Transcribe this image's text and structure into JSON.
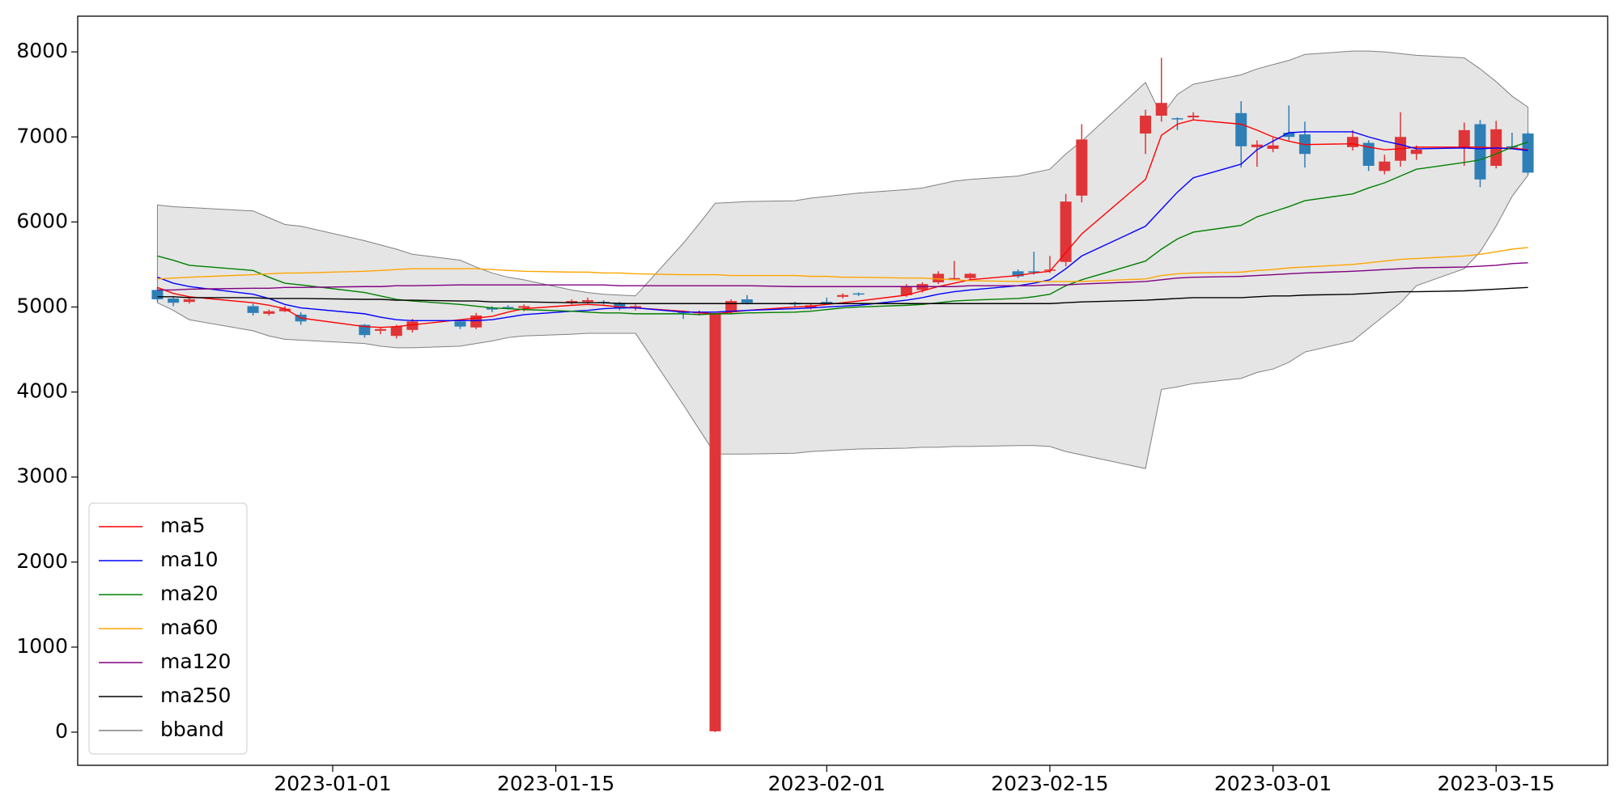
{
  "chart_data": {
    "type": "candlestick",
    "x": [
      "2022-12-21",
      "2022-12-22",
      "2022-12-23",
      "2022-12-27",
      "2022-12-28",
      "2022-12-29",
      "2022-12-30",
      "2023-01-03",
      "2023-01-04",
      "2023-01-05",
      "2023-01-06",
      "2023-01-09",
      "2023-01-10",
      "2023-01-11",
      "2023-01-12",
      "2023-01-13",
      "2023-01-16",
      "2023-01-17",
      "2023-01-18",
      "2023-01-19",
      "2023-01-20",
      "2023-01-23",
      "2023-01-24",
      "2023-01-25",
      "2023-01-26",
      "2023-01-27",
      "2023-01-30",
      "2023-01-31",
      "2023-02-01",
      "2023-02-02",
      "2023-02-03",
      "2023-02-06",
      "2023-02-07",
      "2023-02-08",
      "2023-02-09",
      "2023-02-10",
      "2023-02-13",
      "2023-02-14",
      "2023-02-15",
      "2023-02-16",
      "2023-02-17",
      "2023-02-21",
      "2023-02-22",
      "2023-02-23",
      "2023-02-24",
      "2023-02-27",
      "2023-02-28",
      "2023-03-01",
      "2023-03-02",
      "2023-03-03",
      "2023-03-06",
      "2023-03-07",
      "2023-03-08",
      "2023-03-09",
      "2023-03-10",
      "2023-03-13",
      "2023-03-14",
      "2023-03-15",
      "2023-03-16",
      "2023-03-17"
    ],
    "open": [
      5200,
      5100,
      5060,
      5010,
      4920,
      4950,
      4910,
      4790,
      4720,
      4660,
      4730,
      4830,
      4760,
      4990,
      5000,
      4990,
      5050,
      5060,
      5060,
      5050,
      4990,
      4950,
      4930,
      10,
      4940,
      5090,
      5050,
      4990,
      5060,
      5120,
      5160,
      5140,
      5200,
      5290,
      5330,
      5340,
      5420,
      5420,
      5430,
      5530,
      6310,
      7040,
      7250,
      7220,
      7230,
      7280,
      6880,
      6860,
      7050,
      7030,
      6880,
      6930,
      6600,
      6720,
      6800,
      6880,
      7150,
      6660,
      6890,
      7040
    ],
    "high": [
      5230,
      5130,
      5110,
      5040,
      4970,
      5010,
      4940,
      4800,
      4760,
      4790,
      4860,
      4850,
      4930,
      5010,
      5020,
      5030,
      5090,
      5110,
      5080,
      5060,
      5030,
      4960,
      4960,
      4930,
      5090,
      5140,
      5060,
      5040,
      5110,
      5160,
      5170,
      5270,
      5290,
      5420,
      5540,
      5400,
      5440,
      5650,
      5600,
      6330,
      7150,
      7320,
      7930,
      7230,
      7290,
      7420,
      6960,
      6990,
      7370,
      7180,
      7080,
      6960,
      6790,
      7290,
      6900,
      7170,
      7200,
      7190,
      7050,
      7060
    ],
    "low": [
      5060,
      5010,
      5040,
      4900,
      4900,
      4940,
      4790,
      4640,
      4680,
      4630,
      4700,
      4740,
      4740,
      4940,
      4970,
      4950,
      5030,
      5040,
      5030,
      4960,
      4960,
      4860,
      4900,
      0,
      4920,
      5030,
      5000,
      4970,
      5030,
      5100,
      5130,
      5120,
      5170,
      5270,
      5320,
      5310,
      5340,
      5380,
      5400,
      5480,
      6230,
      6800,
      7180,
      7080,
      7200,
      6640,
      6650,
      6820,
      6960,
      6640,
      6840,
      6600,
      6560,
      6650,
      6730,
      6660,
      6410,
      6630,
      6860,
      6560
    ],
    "close": [
      5090,
      5050,
      5090,
      4930,
      4950,
      4980,
      4830,
      4670,
      4740,
      4770,
      4830,
      4770,
      4900,
      4970,
      4990,
      5010,
      5070,
      5080,
      5050,
      4980,
      5010,
      4930,
      4940,
      4915,
      5070,
      5050,
      5030,
      5020,
      5050,
      5140,
      5150,
      5240,
      5270,
      5390,
      5340,
      5390,
      5360,
      5410,
      5440,
      6240,
      6970,
      7250,
      7400,
      7210,
      7250,
      6890,
      6910,
      6900,
      7000,
      6800,
      7000,
      6660,
      6710,
      7000,
      6850,
      7080,
      6500,
      7090,
      6880,
      6580
    ],
    "up_color": "#e03538",
    "down_color": "#2f7fb7",
    "series": [
      {
        "name": "ma5",
        "color": "red",
        "values": [
          5230,
          5160,
          5120,
          5050,
          5020,
          4980,
          4870,
          4770,
          4760,
          4770,
          4790,
          4850,
          4870,
          4890,
          4940,
          4980,
          5020,
          5030,
          5020,
          5000,
          4990,
          4950,
          4930,
          4920,
          4940,
          4960,
          5000,
          5010,
          5030,
          5050,
          5070,
          5140,
          5190,
          5240,
          5280,
          5320,
          5370,
          5400,
          5420,
          5640,
          5860,
          6500,
          7020,
          7150,
          7200,
          7150,
          7080,
          7000,
          6950,
          6910,
          6920,
          6880,
          6850,
          6860,
          6880,
          6880,
          6880,
          6870,
          6870,
          6850
        ]
      },
      {
        "name": "ma10",
        "color": "blue",
        "values": [
          5350,
          5280,
          5240,
          5150,
          5100,
          5030,
          4990,
          4920,
          4880,
          4850,
          4840,
          4840,
          4840,
          4850,
          4880,
          4910,
          4950,
          4960,
          4980,
          4990,
          4990,
          4940,
          4940,
          4940,
          4950,
          4960,
          4980,
          4990,
          5000,
          5010,
          5020,
          5080,
          5110,
          5150,
          5180,
          5200,
          5250,
          5280,
          5320,
          5450,
          5600,
          5950,
          6150,
          6350,
          6520,
          6680,
          6850,
          6950,
          7050,
          7060,
          7060,
          7000,
          6950,
          6910,
          6860,
          6870,
          6860,
          6870,
          6860,
          6840
        ]
      },
      {
        "name": "ma20",
        "color": "green",
        "values": [
          5600,
          5550,
          5490,
          5430,
          5350,
          5280,
          5260,
          5170,
          5130,
          5090,
          5070,
          5030,
          5010,
          4990,
          4980,
          4970,
          4950,
          4940,
          4930,
          4930,
          4920,
          4920,
          4910,
          4920,
          4920,
          4930,
          4940,
          4950,
          4970,
          4990,
          5000,
          5020,
          5030,
          5050,
          5070,
          5080,
          5100,
          5120,
          5150,
          5250,
          5320,
          5540,
          5680,
          5800,
          5880,
          5960,
          6060,
          6120,
          6180,
          6250,
          6330,
          6400,
          6460,
          6540,
          6620,
          6700,
          6730,
          6800,
          6880,
          6940
        ]
      },
      {
        "name": "ma60",
        "color": "orange",
        "values": [
          5330,
          5340,
          5350,
          5380,
          5390,
          5400,
          5400,
          5420,
          5430,
          5440,
          5450,
          5450,
          5450,
          5440,
          5430,
          5420,
          5410,
          5410,
          5400,
          5400,
          5390,
          5380,
          5380,
          5380,
          5370,
          5370,
          5370,
          5360,
          5360,
          5350,
          5350,
          5340,
          5340,
          5330,
          5320,
          5310,
          5300,
          5300,
          5300,
          5300,
          5300,
          5330,
          5370,
          5390,
          5400,
          5410,
          5430,
          5440,
          5460,
          5470,
          5500,
          5520,
          5540,
          5560,
          5570,
          5600,
          5620,
          5650,
          5680,
          5700
        ]
      },
      {
        "name": "ma120",
        "color": "purple",
        "values": [
          5200,
          5200,
          5210,
          5220,
          5220,
          5230,
          5230,
          5240,
          5240,
          5250,
          5250,
          5260,
          5260,
          5260,
          5260,
          5260,
          5260,
          5260,
          5260,
          5250,
          5250,
          5250,
          5250,
          5250,
          5250,
          5250,
          5240,
          5240,
          5240,
          5240,
          5240,
          5240,
          5240,
          5240,
          5240,
          5250,
          5250,
          5250,
          5260,
          5260,
          5270,
          5300,
          5320,
          5340,
          5350,
          5360,
          5370,
          5380,
          5390,
          5400,
          5420,
          5430,
          5440,
          5450,
          5460,
          5470,
          5480,
          5490,
          5510,
          5520
        ]
      },
      {
        "name": "ma250",
        "color": "black",
        "values": [
          5120,
          5120,
          5110,
          5110,
          5100,
          5100,
          5100,
          5090,
          5090,
          5080,
          5080,
          5070,
          5070,
          5060,
          5060,
          5060,
          5050,
          5050,
          5050,
          5040,
          5040,
          5040,
          5040,
          5040,
          5040,
          5040,
          5040,
          5040,
          5040,
          5040,
          5040,
          5040,
          5040,
          5040,
          5040,
          5040,
          5040,
          5040,
          5040,
          5050,
          5060,
          5080,
          5090,
          5100,
          5110,
          5110,
          5120,
          5130,
          5130,
          5140,
          5150,
          5160,
          5170,
          5180,
          5180,
          5190,
          5200,
          5210,
          5220,
          5230
        ]
      }
    ],
    "bband": {
      "name": "bband",
      "color": "#e5e5e5",
      "edge_color": "gray",
      "upper": [
        6200,
        6180,
        6170,
        6130,
        6050,
        5970,
        5950,
        5780,
        5730,
        5680,
        5620,
        5550,
        5470,
        5400,
        5350,
        5320,
        5200,
        5170,
        5150,
        5140,
        5130,
        5750,
        5980,
        6220,
        6230,
        6240,
        6250,
        6280,
        6300,
        6320,
        6340,
        6380,
        6400,
        6440,
        6480,
        6500,
        6540,
        6580,
        6620,
        6800,
        6950,
        7640,
        7250,
        7500,
        7620,
        7730,
        7800,
        7850,
        7900,
        7970,
        8010,
        8010,
        8000,
        7980,
        7960,
        7930,
        7800,
        7650,
        7480,
        7350
      ],
      "lower": [
        5050,
        4960,
        4850,
        4720,
        4660,
        4620,
        4610,
        4570,
        4540,
        4520,
        4520,
        4540,
        4570,
        4600,
        4640,
        4660,
        4680,
        4690,
        4690,
        4690,
        4690,
        3850,
        3560,
        3270,
        3270,
        3270,
        3280,
        3300,
        3310,
        3320,
        3330,
        3340,
        3350,
        3350,
        3360,
        3360,
        3370,
        3370,
        3360,
        3300,
        3260,
        3100,
        4030,
        4060,
        4100,
        4160,
        4230,
        4270,
        4350,
        4470,
        4600,
        4750,
        4900,
        5050,
        5250,
        5450,
        5650,
        5950,
        6300,
        6550
      ]
    },
    "xlim": [
      "2022-12-16",
      "2023-03-22"
    ],
    "xticks": [
      "2023-01-01",
      "2023-01-15",
      "2023-02-01",
      "2023-02-15",
      "2023-03-01",
      "2023-03-15"
    ],
    "ylim": [
      -390,
      8420
    ],
    "yticks": [
      0,
      1000,
      2000,
      3000,
      4000,
      5000,
      6000,
      7000,
      8000
    ],
    "legend": "lower left"
  }
}
